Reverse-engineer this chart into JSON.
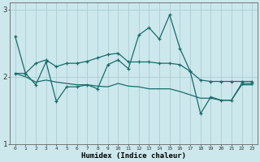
{
  "xlabel": "Humidex (Indice chaleur)",
  "ylabel": "",
  "bg_color": "#cce8ec",
  "grid_color": "#aacdd4",
  "line_color": "#1a6b6b",
  "x_values": [
    0,
    1,
    2,
    3,
    4,
    5,
    6,
    7,
    8,
    9,
    10,
    11,
    12,
    13,
    14,
    15,
    16,
    17,
    18,
    19,
    20,
    21,
    22,
    23
  ],
  "line_jagged": [
    2.6,
    2.05,
    1.88,
    2.22,
    1.63,
    1.85,
    1.85,
    1.88,
    1.82,
    2.18,
    2.25,
    2.12,
    2.62,
    2.73,
    2.56,
    2.92,
    2.42,
    2.08,
    1.45,
    1.7,
    1.65,
    1.65,
    1.9,
    1.9
  ],
  "line_smooth": [
    2.05,
    2.05,
    2.2,
    2.25,
    2.15,
    2.2,
    2.2,
    2.23,
    2.28,
    2.33,
    2.35,
    2.22,
    2.22,
    2.22,
    2.2,
    2.2,
    2.18,
    2.08,
    1.95,
    1.93,
    1.93,
    1.93,
    1.93,
    1.93
  ],
  "line_declining": [
    2.05,
    2.0,
    1.92,
    1.95,
    1.92,
    1.9,
    1.88,
    1.88,
    1.86,
    1.85,
    1.9,
    1.86,
    1.85,
    1.82,
    1.82,
    1.82,
    1.78,
    1.73,
    1.68,
    1.68,
    1.65,
    1.65,
    1.88,
    1.88
  ],
  "ylim": [
    1.0,
    3.1
  ],
  "xlim": [
    -0.5,
    23.5
  ],
  "yticks": [
    1,
    2,
    3
  ],
  "xticks": [
    0,
    1,
    2,
    3,
    4,
    5,
    6,
    7,
    8,
    9,
    10,
    11,
    12,
    13,
    14,
    15,
    16,
    17,
    18,
    19,
    20,
    21,
    22,
    23
  ],
  "figsize": [
    3.2,
    2.0
  ],
  "dpi": 100
}
